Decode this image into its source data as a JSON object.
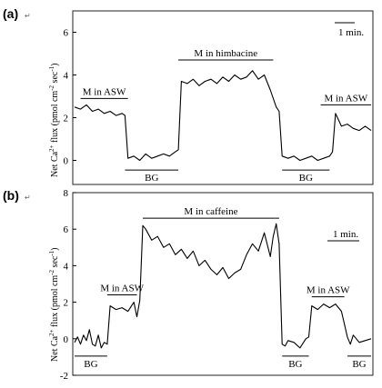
{
  "chart_data": [
    {
      "type": "line",
      "panel_label": "(a)",
      "panel_mark": "↵",
      "ylabel_main": "Net Ca",
      "ylabel_sup1": "2+",
      "ylabel_mid": " flux (pmol cm",
      "ylabel_sup2": "-2",
      "ylabel_mid2": " sec",
      "ylabel_sup3": "-1",
      "ylabel_end": ")",
      "ylim": [
        -1,
        7
      ],
      "yticks": [
        0,
        2,
        4,
        6
      ],
      "xlim": [
        0,
        100
      ],
      "scale_bar": "1 min.",
      "annotations": [
        {
          "text": "M in ASW",
          "x_start": 2,
          "x_end": 18,
          "y": 2.9,
          "position": "above"
        },
        {
          "text": "BG",
          "x_start": 17,
          "x_end": 35,
          "y": -0.45,
          "position": "below"
        },
        {
          "text": "M in himbacine",
          "x_start": 35,
          "x_end": 67,
          "y": 4.7,
          "position": "above"
        },
        {
          "text": "BG",
          "x_start": 70,
          "x_end": 86,
          "y": -0.45,
          "position": "below"
        },
        {
          "text": "M in ASW",
          "x_start": 83,
          "x_end": 100,
          "y": 2.6,
          "position": "above"
        }
      ],
      "series": [
        {
          "x": [
            0,
            2,
            4,
            6,
            8,
            10,
            12,
            14,
            16,
            17,
            18,
            20,
            22,
            24,
            26,
            28,
            30,
            32,
            34,
            35,
            36,
            38,
            40,
            42,
            44,
            46,
            48,
            50,
            52,
            54,
            56,
            58,
            60,
            62,
            64,
            66,
            68,
            69,
            70,
            72,
            74,
            76,
            78,
            80,
            82,
            84,
            86,
            87,
            88,
            90,
            92,
            94,
            96,
            98,
            100
          ],
          "y": [
            2.5,
            2.4,
            2.6,
            2.3,
            2.4,
            2.2,
            2.3,
            2.1,
            2.2,
            2.1,
            0.1,
            0.2,
            0.0,
            0.3,
            0.1,
            0.2,
            0.3,
            0.2,
            0.4,
            0.5,
            3.7,
            3.6,
            3.8,
            3.5,
            3.7,
            3.8,
            3.6,
            3.9,
            3.7,
            4.0,
            3.8,
            3.9,
            4.2,
            3.8,
            4.0,
            3.3,
            2.5,
            2.3,
            0.2,
            0.1,
            0.2,
            0.0,
            0.1,
            0.2,
            0.0,
            0.1,
            0.2,
            0.4,
            2.2,
            1.6,
            1.7,
            1.5,
            1.4,
            1.6,
            1.4
          ]
        }
      ]
    },
    {
      "type": "line",
      "panel_label": "(b)",
      "panel_mark": "↵",
      "ylabel_main": "Net Ca",
      "ylabel_sup1": "2+",
      "ylabel_mid": " flux (pmol cm",
      "ylabel_sup2": "-2",
      "ylabel_mid2": " sec",
      "ylabel_sup3": "-1",
      "ylabel_end": ")",
      "ylim": [
        -2,
        8
      ],
      "yticks": [
        -2,
        0,
        2,
        4,
        6,
        8
      ],
      "xlim": [
        0,
        100
      ],
      "scale_bar": "1 min.",
      "annotations": [
        {
          "text": "BG",
          "x_start": 0,
          "x_end": 11,
          "y": -0.95,
          "position": "below"
        },
        {
          "text": "M in ASW",
          "x_start": 11,
          "x_end": 21,
          "y": 2.4,
          "position": "above"
        },
        {
          "text": "M in caffeine",
          "x_start": 23,
          "x_end": 69,
          "y": 6.6,
          "position": "above"
        },
        {
          "text": "BG",
          "x_start": 70,
          "x_end": 79,
          "y": -0.95,
          "position": "below"
        },
        {
          "text": "M in ASW",
          "x_start": 80,
          "x_end": 91,
          "y": 2.3,
          "position": "above"
        },
        {
          "text": "BG",
          "x_start": 92,
          "x_end": 100,
          "y": -0.95,
          "position": "below"
        }
      ],
      "series": [
        {
          "x": [
            0,
            1,
            2,
            3,
            4,
            5,
            6,
            7,
            8,
            9,
            10,
            11,
            12,
            14,
            16,
            18,
            20,
            21,
            22,
            23,
            24,
            26,
            28,
            30,
            32,
            34,
            36,
            38,
            40,
            42,
            44,
            46,
            48,
            50,
            52,
            54,
            56,
            58,
            60,
            62,
            64,
            66,
            67,
            68,
            69,
            70,
            71,
            72,
            74,
            76,
            78,
            79,
            80,
            82,
            84,
            86,
            88,
            90,
            91,
            92,
            93,
            94,
            96,
            98,
            100
          ],
          "y": [
            -0.2,
            0.1,
            -0.3,
            0.2,
            -0.1,
            0.5,
            -0.3,
            -0.4,
            0.2,
            -0.5,
            -0.2,
            -0.3,
            1.8,
            1.6,
            1.7,
            1.5,
            2.0,
            1.2,
            2.1,
            6.2,
            6.0,
            5.4,
            5.6,
            5.0,
            5.2,
            4.6,
            4.9,
            4.4,
            4.8,
            4.0,
            4.3,
            3.8,
            3.5,
            3.9,
            3.3,
            3.6,
            3.8,
            4.6,
            5.2,
            4.8,
            5.8,
            4.5,
            5.6,
            6.3,
            5.2,
            -0.3,
            -0.4,
            -0.1,
            -0.2,
            -0.5,
            0.0,
            0.1,
            1.8,
            1.6,
            1.9,
            1.7,
            1.9,
            1.5,
            0.8,
            0.1,
            -0.3,
            0.2,
            -0.2,
            -0.1,
            0.0
          ]
        }
      ]
    }
  ]
}
